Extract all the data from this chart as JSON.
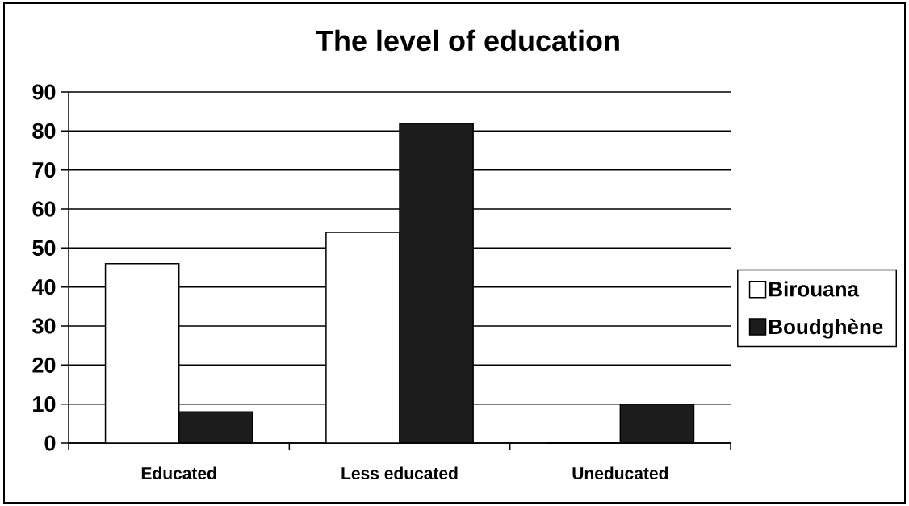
{
  "chart_data": {
    "type": "bar",
    "title": "The level of education",
    "categories": [
      "Educated",
      "Less educated",
      "Uneducated"
    ],
    "series": [
      {
        "name": "Birouana",
        "color": "#ffffff",
        "values": [
          46,
          54,
          0
        ]
      },
      {
        "name": "Boudghène",
        "color": "#1c1c1c",
        "values": [
          8,
          82,
          10
        ]
      }
    ],
    "ylim": [
      0,
      90
    ],
    "yticks": [
      0,
      10,
      20,
      30,
      40,
      50,
      60,
      70,
      80,
      90
    ],
    "grid": "y",
    "legend": "right"
  }
}
